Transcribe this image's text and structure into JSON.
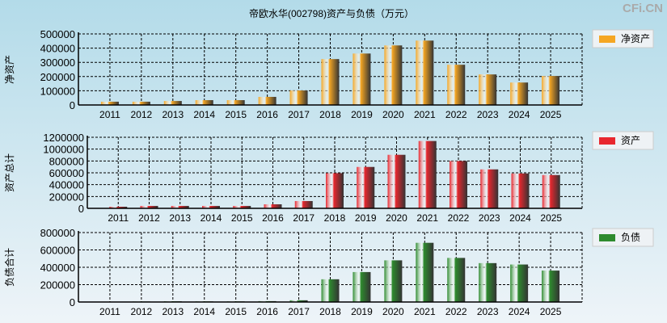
{
  "title": "帝欧水华(002798)资产与负债（万元）",
  "watermark": "CFi.CN",
  "chart_data": [
    {
      "type": "bar",
      "ylabel": "净资产",
      "legend": "净资产",
      "legend_placement": "right",
      "color": "#f5a623",
      "grid": true,
      "categories": [
        "2011",
        "2012",
        "2013",
        "2014",
        "2015",
        "2016",
        "2017",
        "2018",
        "2019",
        "2020",
        "2021",
        "2022",
        "2023",
        "2024",
        "2025"
      ],
      "values": [
        23000,
        23000,
        28000,
        34000,
        34000,
        57000,
        102000,
        323000,
        362000,
        419000,
        453000,
        283000,
        215000,
        158000,
        204000
      ],
      "ylim": [
        0,
        500000
      ],
      "yticks": [
        "0",
        "100000",
        "200000",
        "300000",
        "400000",
        "500000"
      ]
    },
    {
      "type": "bar",
      "ylabel": "资产总计",
      "legend": "资产",
      "legend_placement": "right",
      "color": "#e8272e",
      "grid": true,
      "categories": [
        "2011",
        "2012",
        "2013",
        "2014",
        "2015",
        "2016",
        "2017",
        "2018",
        "2019",
        "2020",
        "2021",
        "2022",
        "2023",
        "2024",
        "2025"
      ],
      "values": [
        27000,
        41000,
        41000,
        41000,
        41000,
        68000,
        123000,
        594000,
        699000,
        904000,
        1137000,
        799000,
        658000,
        589000,
        562000
      ],
      "ylim": [
        0,
        1200000
      ],
      "yticks": [
        "0",
        "200000",
        "400000",
        "600000",
        "800000",
        "1000000",
        "1200000"
      ]
    },
    {
      "type": "bar",
      "ylabel": "负债合计",
      "legend": "负债",
      "legend_placement": "right",
      "color": "#2e8b2e",
      "grid": true,
      "categories": [
        "2011",
        "2012",
        "2013",
        "2014",
        "2015",
        "2016",
        "2017",
        "2018",
        "2019",
        "2020",
        "2021",
        "2022",
        "2023",
        "2024",
        "2025"
      ],
      "values": [
        4000,
        6000,
        8000,
        7000,
        7000,
        10000,
        20000,
        262000,
        345000,
        480000,
        682000,
        508000,
        448000,
        432000,
        362000
      ],
      "ylim": [
        0,
        800000
      ],
      "yticks": [
        "0",
        "200000",
        "400000",
        "600000",
        "800000"
      ]
    }
  ]
}
